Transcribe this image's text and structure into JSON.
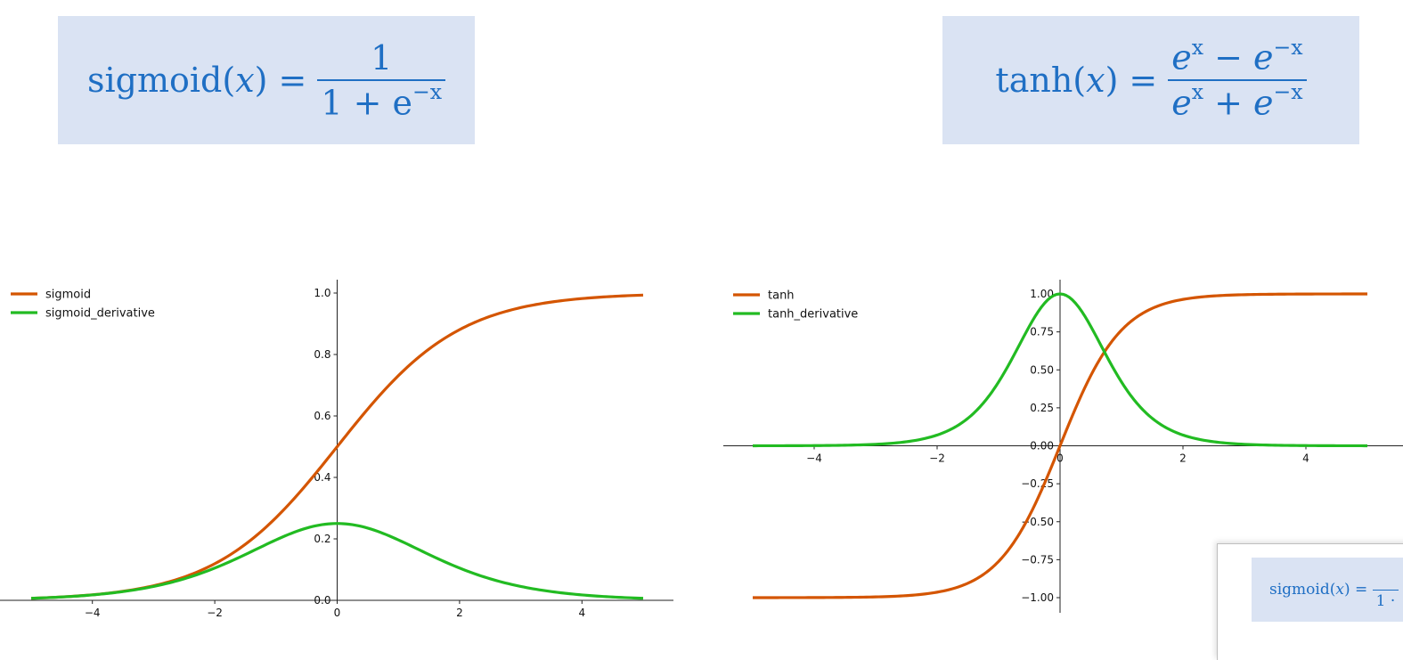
{
  "formulas": {
    "sigmoid": {
      "name": "sigmoid",
      "arg": "x",
      "numerator": "1",
      "denominator_base": "1 + e",
      "denominator_exp": "−x"
    },
    "tanh": {
      "name": "tanh",
      "arg": "x",
      "num_a": "e",
      "num_a_exp": "x",
      "num_op": "−",
      "num_b": "e",
      "num_b_exp": "−x",
      "den_a": "e",
      "den_a_exp": "x",
      "den_op": "+",
      "den_b": "e",
      "den_b_exp": "−x"
    }
  },
  "overlay": {
    "name": "sigmoid",
    "arg": "x",
    "visible_denominator": "1 ·"
  },
  "chart_data": [
    {
      "type": "line",
      "xlim": [
        -5,
        5
      ],
      "ylim": [
        0,
        1
      ],
      "x_ticks": [
        -4,
        -2,
        0,
        2,
        4
      ],
      "y_ticks": [
        0.0,
        0.2,
        0.4,
        0.6,
        0.8,
        1.0
      ],
      "y_tick_labels": [
        "0.0",
        "0.2",
        "0.4",
        "0.6",
        "0.8",
        "1.0"
      ],
      "x_tick_labels": [
        "−4",
        "−2",
        "0",
        "2",
        "4"
      ],
      "grid": false,
      "legend_position": "top-left",
      "series": [
        {
          "name": "sigmoid",
          "color": "#d45500",
          "function": "sigmoid",
          "sample_x": [
            -5,
            -4,
            -3,
            -2,
            -1,
            0,
            1,
            2,
            3,
            4,
            5
          ],
          "sample_y": [
            0.007,
            0.018,
            0.047,
            0.119,
            0.269,
            0.5,
            0.731,
            0.881,
            0.953,
            0.982,
            0.993
          ]
        },
        {
          "name": "sigmoid_derivative",
          "color": "#22bb22",
          "function": "sigmoid_derivative",
          "sample_x": [
            -5,
            -4,
            -3,
            -2,
            -1,
            0,
            1,
            2,
            3,
            4,
            5
          ],
          "sample_y": [
            0.007,
            0.018,
            0.045,
            0.105,
            0.197,
            0.25,
            0.197,
            0.105,
            0.045,
            0.018,
            0.007
          ]
        }
      ]
    },
    {
      "type": "line",
      "xlim": [
        -5,
        5
      ],
      "ylim": [
        -1,
        1
      ],
      "x_ticks": [
        -4,
        -2,
        0,
        2,
        4
      ],
      "x_tick_labels": [
        "−4",
        "−2",
        "0",
        "2",
        "4"
      ],
      "y_ticks": [
        -1.0,
        -0.75,
        -0.5,
        -0.25,
        0.0,
        0.25,
        0.5,
        0.75,
        1.0
      ],
      "y_tick_labels": [
        "−1.00",
        "−0.75",
        "−0.50",
        "−0.25",
        "0.00",
        "0.25",
        "0.50",
        "0.75",
        "1.00"
      ],
      "grid": false,
      "legend_position": "top-left",
      "series": [
        {
          "name": "tanh",
          "color": "#d45500",
          "function": "tanh",
          "sample_x": [
            -5,
            -4,
            -3,
            -2,
            -1,
            0,
            1,
            2,
            3,
            4,
            5
          ],
          "sample_y": [
            -1.0,
            -0.999,
            -0.995,
            -0.964,
            -0.762,
            0.0,
            0.762,
            0.964,
            0.995,
            0.999,
            1.0
          ]
        },
        {
          "name": "tanh_derivative",
          "color": "#22bb22",
          "function": "tanh_derivative",
          "sample_x": [
            -5,
            -4,
            -3,
            -2,
            -1,
            0,
            1,
            2,
            3,
            4,
            5
          ],
          "sample_y": [
            0.0,
            0.001,
            0.01,
            0.071,
            0.42,
            1.0,
            0.42,
            0.071,
            0.01,
            0.001,
            0.0
          ]
        }
      ]
    }
  ]
}
